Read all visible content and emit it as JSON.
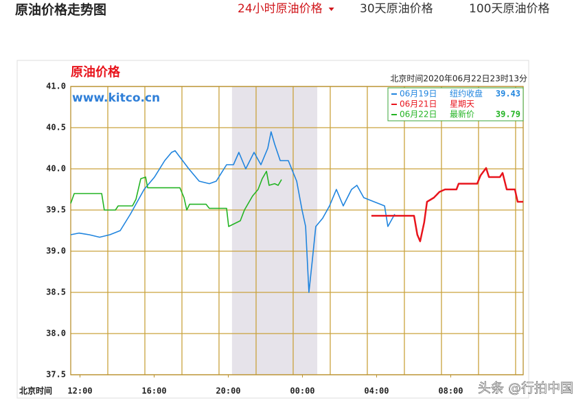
{
  "header": {
    "title": "原油价格走势图",
    "tabs": [
      {
        "label": "24小时原油价格",
        "active": true
      },
      {
        "label": "30天原油价格"
      },
      {
        "label": "100天原油价格"
      }
    ]
  },
  "chart_data": {
    "type": "line",
    "title": "原油价格",
    "site": "www.kitco.cn",
    "timestamp": "北京时间2020年06月22日23时13分",
    "x_label": "北京时间",
    "xlim": [
      11.5,
      35.91
    ],
    "ylim": [
      37.5,
      41.0
    ],
    "xticks": [
      {
        "value": 12,
        "label": "12:00"
      },
      {
        "value": 16,
        "label": "16:00"
      },
      {
        "value": 20,
        "label": "20:00"
      },
      {
        "value": 24,
        "label": "00:00"
      },
      {
        "value": 28,
        "label": "04:00"
      },
      {
        "value": 32,
        "label": "08:00"
      }
    ],
    "yticks": [
      37.5,
      {
        "value": 38,
        "label": "38.0"
      },
      38.5,
      {
        "value": 39,
        "label": "39.0"
      },
      39.5,
      {
        "value": 40,
        "label": "40.0"
      },
      40.5,
      {
        "value": 41,
        "label": "41.0"
      }
    ],
    "xgrid": [
      13.5,
      15.5,
      17.5,
      19.5,
      21.5,
      23.5,
      25.5,
      27.5,
      29.5,
      31.5,
      33.5,
      35.5
    ],
    "grid": true,
    "shaded": [
      20.2,
      24.8
    ],
    "series": [
      {
        "name": "06月19日",
        "note": "纽约收盘",
        "last": 39.43,
        "color": "#1f84de",
        "x": [
          11.5,
          11.94,
          12.5,
          13.06,
          13.61,
          14.17,
          14.72,
          15.09,
          15.46,
          16.02,
          16.57,
          16.94,
          17.13,
          17.87,
          18.43,
          18.98,
          19.35,
          19.91,
          20.28,
          20.57,
          20.94,
          21.39,
          21.76,
          22.13,
          22.31,
          22.5,
          22.8,
          23.24,
          23.69,
          23.98,
          24.17,
          24.35,
          24.54,
          24.72,
          25.09,
          25.46,
          25.83,
          26.2,
          26.65,
          26.94,
          27.31,
          27.87,
          28.43,
          28.61,
          28.98
        ],
        "values": [
          39.2,
          39.22,
          39.2,
          39.17,
          39.2,
          39.25,
          39.45,
          39.6,
          39.75,
          39.9,
          40.1,
          40.2,
          40.22,
          40.0,
          39.85,
          39.82,
          39.85,
          40.05,
          40.05,
          40.2,
          40.0,
          40.2,
          40.05,
          40.25,
          40.45,
          40.3,
          40.1,
          40.1,
          39.85,
          39.5,
          39.3,
          38.5,
          38.9,
          39.3,
          39.4,
          39.55,
          39.75,
          39.55,
          39.75,
          39.8,
          39.65,
          39.6,
          39.55,
          39.3,
          39.45
        ]
      },
      {
        "name": "06月21日",
        "note": "星期天",
        "color": "#e8141c",
        "x": [
          27.72,
          30.02,
          30.2,
          30.35,
          30.57,
          30.72,
          31.09,
          31.39,
          31.69,
          32.31,
          32.43,
          33.43,
          33.61,
          33.91,
          34.06,
          34.65,
          34.8,
          35.02,
          35.46,
          35.61,
          35.91
        ],
        "values": [
          39.43,
          39.43,
          39.2,
          39.12,
          39.35,
          39.6,
          39.65,
          39.72,
          39.75,
          39.75,
          39.82,
          39.82,
          39.92,
          40.01,
          39.9,
          39.9,
          39.95,
          39.75,
          39.75,
          39.6,
          39.6
        ]
      },
      {
        "name": "06月22日",
        "note": "最新价",
        "last": 39.79,
        "color": "#22b322",
        "x": [
          11.5,
          11.69,
          13.17,
          13.31,
          13.91,
          14.06,
          14.83,
          15.02,
          15.28,
          15.54,
          15.65,
          17.39,
          17.61,
          17.76,
          17.91,
          18.8,
          18.98,
          19.91,
          20.02,
          20.65,
          20.87,
          21.31,
          21.61,
          21.83,
          22.06,
          22.2,
          22.5,
          22.69,
          22.87
        ],
        "values": [
          39.58,
          39.7,
          39.7,
          39.5,
          39.5,
          39.55,
          39.55,
          39.63,
          39.88,
          39.9,
          39.77,
          39.77,
          39.65,
          39.5,
          39.57,
          39.57,
          39.52,
          39.52,
          39.3,
          39.37,
          39.5,
          39.67,
          39.75,
          39.88,
          39.97,
          39.8,
          39.82,
          39.8,
          39.87
        ]
      }
    ]
  },
  "watermark": "头条 @行拍中国"
}
